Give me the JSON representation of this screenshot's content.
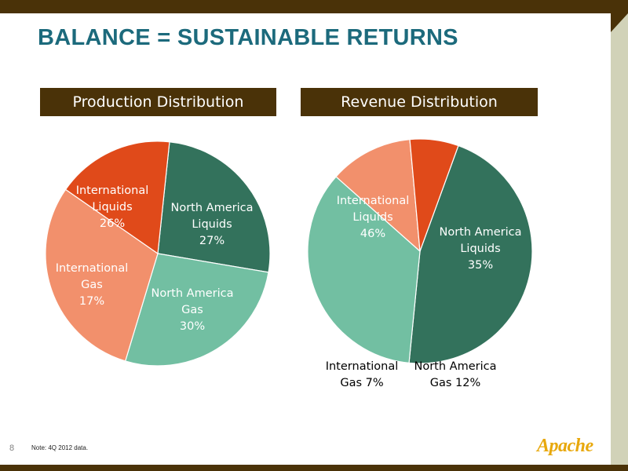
{
  "title": "BALANCE = SUSTAINABLE RETURNS",
  "page_number": "8",
  "note": "Note: 4Q 2012 data.",
  "logo_text": "Apache",
  "colors": {
    "international_liquids": "#33725c",
    "north_america_liquids": "#72bfa2",
    "north_america_gas": "#f2906c",
    "international_gas": "#e04a1a",
    "header_bg": "#4a3208",
    "title": "#1c6a7c"
  },
  "chart_data": [
    {
      "type": "pie",
      "title": "Production Distribution",
      "slices": [
        {
          "label_lines": [
            "International",
            "Liquids",
            "26%"
          ],
          "value": 26,
          "color": "#33725c",
          "text_color": "#ffffff"
        },
        {
          "label_lines": [
            "North America",
            "Liquids",
            "27%"
          ],
          "value": 27,
          "color": "#72bfa2",
          "text_color": "#ffffff"
        },
        {
          "label_lines": [
            "North America",
            "Gas",
            "30%"
          ],
          "value": 30,
          "color": "#f2906c",
          "text_color": "#ffffff"
        },
        {
          "label_lines": [
            "International",
            "Gas",
            "17%"
          ],
          "value": 17,
          "color": "#e04a1a",
          "text_color": "#ffffff"
        }
      ]
    },
    {
      "type": "pie",
      "title": "Revenue Distribution",
      "slices": [
        {
          "label_lines": [
            "International",
            "Liquids",
            "46%"
          ],
          "value": 46,
          "color": "#33725c",
          "text_color": "#ffffff"
        },
        {
          "label_lines": [
            "North America",
            "Liquids",
            "35%"
          ],
          "value": 35,
          "color": "#72bfa2",
          "text_color": "#ffffff"
        },
        {
          "label_lines": [
            "North America",
            "Gas 12%"
          ],
          "value": 12,
          "color": "#f2906c",
          "text_color": "#000000",
          "outside": true
        },
        {
          "label_lines": [
            "International",
            "Gas 7%"
          ],
          "value": 7,
          "color": "#e04a1a",
          "text_color": "#000000",
          "outside": true
        }
      ]
    }
  ]
}
